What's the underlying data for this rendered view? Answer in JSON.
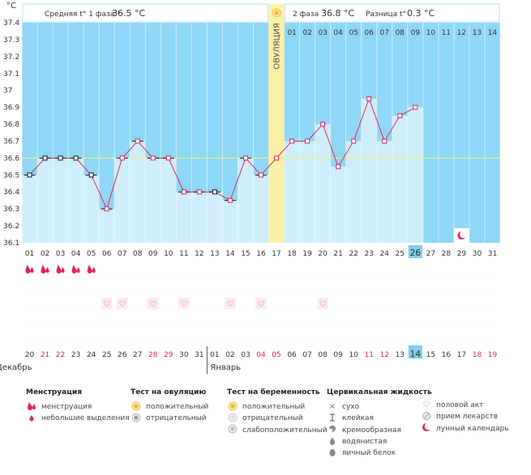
{
  "header": {
    "unit": "°C",
    "phase1_label": "Средняя t° 1 фаза",
    "phase1_value": "36.5 °C",
    "phase2_label": "2 фаза",
    "phase2_value": "36.8 °C",
    "diff_label": "Разница t°",
    "diff_value": "0.3 °C",
    "ovulation_label": "ОВУЛЯЦИЯ"
  },
  "chart_data": {
    "type": "line",
    "ylim": [
      36.1,
      37.4
    ],
    "yticks": [
      "37.4",
      "37.3",
      "37.2",
      "37.1",
      "37",
      "36.9",
      "36.8",
      "36.7",
      "36.6",
      "36.5",
      "36.4",
      "36.3",
      "36.2",
      "36.1"
    ],
    "cover_line": 36.6,
    "day_labels": [
      "01",
      "02",
      "03",
      "04",
      "05",
      "06",
      "07",
      "08",
      "09",
      "10",
      "11",
      "12",
      "13",
      "14",
      "15",
      "16",
      "17",
      "18",
      "19",
      "20",
      "21",
      "22",
      "23",
      "24",
      "25",
      "26",
      "27",
      "28",
      "29",
      "30",
      "31"
    ],
    "phase2_day_labels": [
      "01",
      "02",
      "03",
      "04",
      "05",
      "06",
      "07",
      "08",
      "09",
      "10",
      "11",
      "12",
      "13",
      "14"
    ],
    "temperatures": [
      36.5,
      36.6,
      36.6,
      36.6,
      36.5,
      36.3,
      36.6,
      36.7,
      36.6,
      36.6,
      36.4,
      36.4,
      36.4,
      36.35,
      36.6,
      36.5,
      36.6,
      36.7,
      36.7,
      36.8,
      36.55,
      36.7,
      36.95,
      36.7,
      36.85,
      36.9
    ],
    "phase1_days": 16,
    "ovulation_day": 17,
    "current_day": 26,
    "lunar_day": 29,
    "dates": [
      "20",
      "21",
      "22",
      "23",
      "24",
      "25",
      "26",
      "27",
      "28",
      "29",
      "30",
      "31",
      "01",
      "02",
      "03",
      "04",
      "05",
      "06",
      "07",
      "08",
      "09",
      "10",
      "11",
      "12",
      "13",
      "14",
      "15",
      "16",
      "17",
      "18",
      "19"
    ],
    "red_dates": [
      2,
      3,
      9,
      10,
      16,
      17,
      23,
      24,
      30,
      31
    ],
    "today_date_index": 26,
    "month_label_1": "Декабрь",
    "month_label_2": "Январь",
    "menstruation_days": [
      1,
      2,
      3,
      4,
      5
    ],
    "intercourse_days": [
      6,
      7,
      9,
      11,
      14,
      16,
      20
    ]
  },
  "colors": {
    "sky": "#8ED7F6",
    "bar": "#CFEEFC",
    "line": "#E0245E",
    "ovulation": "#FBF1A6",
    "current": "#7FCFEF",
    "red_text": "#E0245E"
  },
  "legend": {
    "menstruation": {
      "title": "Менструация",
      "items": [
        {
          "icon": "menstruation-drops-icon",
          "label": "менструация"
        },
        {
          "icon": "small-drop-icon",
          "label": "небольшие выделения"
        }
      ]
    },
    "ovulation_test": {
      "title": "Тест на овуляцию",
      "items": [
        {
          "icon": "positive-sun-icon",
          "label": "положительный"
        },
        {
          "icon": "negative-circle-icon",
          "label": "отрицательный"
        }
      ]
    },
    "pregnancy_test": {
      "title": "Тест на беременность",
      "items": [
        {
          "icon": "positive-sun-icon",
          "label": "положительный"
        },
        {
          "icon": "negative-circle-icon",
          "label": "отрицательный"
        },
        {
          "icon": "weak-positive-icon",
          "label": "слабоположительный"
        }
      ]
    },
    "cervical_fluid": {
      "title": "Цервикальная жидкость",
      "items": [
        {
          "icon": "dry-cross-icon",
          "label": "сухо"
        },
        {
          "icon": "sticky-icon",
          "label": "клейкая"
        },
        {
          "icon": "creamy-icon",
          "label": "кремообразная"
        },
        {
          "icon": "watery-drop-icon",
          "label": "водянистая"
        },
        {
          "icon": "egg-white-icon",
          "label": "яичный белок"
        }
      ]
    },
    "other": {
      "items": [
        {
          "icon": "heart-icon",
          "label": "половой акт"
        },
        {
          "icon": "pill-icon",
          "label": "прием лекарств"
        },
        {
          "icon": "moon-icon",
          "label": "лунный календарь"
        }
      ]
    }
  }
}
